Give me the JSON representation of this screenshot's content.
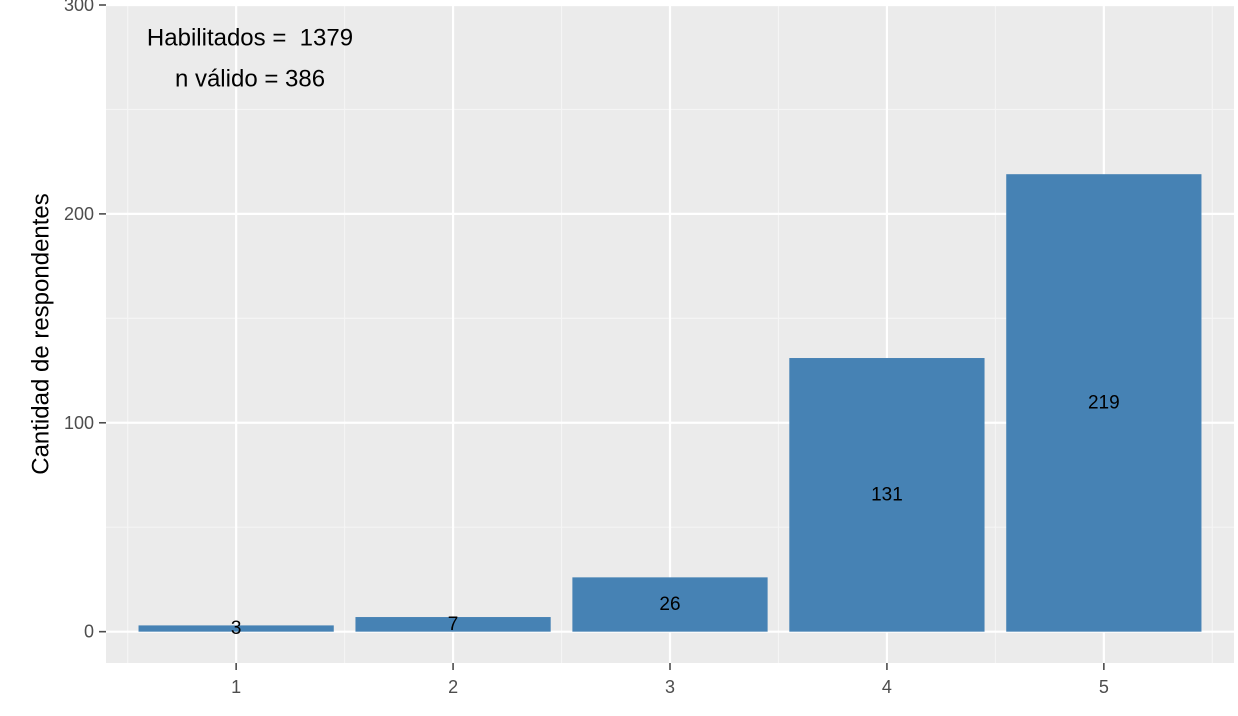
{
  "chart_data": {
    "type": "bar",
    "categories": [
      "1",
      "2",
      "3",
      "4",
      "5"
    ],
    "values": [
      3,
      7,
      26,
      131,
      219
    ],
    "data_labels": [
      "3",
      "7",
      "26",
      "131",
      "219"
    ],
    "title": "",
    "xlabel": "",
    "ylabel": "Cantidad de respondentes",
    "ylim": [
      -15,
      300
    ],
    "yticks": [
      0,
      100,
      200,
      300
    ],
    "yticks_labels": [
      "0",
      "100",
      "200",
      "300"
    ],
    "grid": true,
    "legend": "none",
    "annotations": [
      "Habilitados =  1379",
      "n válido = 386"
    ],
    "colors": {
      "bar": "#4682B4",
      "panel": "#EBEBEB",
      "grid_major": "#FFFFFF",
      "grid_minor": "#F5F5F5",
      "tick": "#4D4D4D"
    }
  }
}
